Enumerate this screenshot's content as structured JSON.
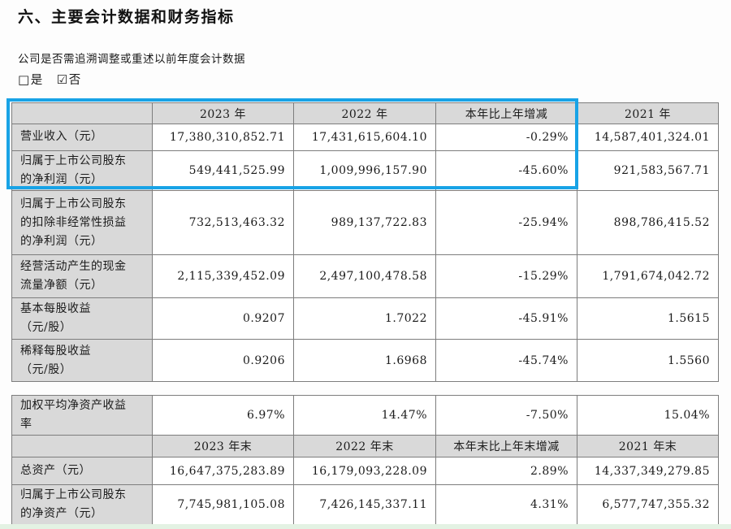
{
  "doc": {
    "title": "六、主要会计数据和财务指标",
    "restate_question": "公司是否需追溯调整或重述以前年度会计数据",
    "checkboxes": [
      {
        "glyph": "□",
        "label": "是",
        "checked": false
      },
      {
        "glyph": "☑",
        "label": "否",
        "checked": true
      }
    ]
  },
  "colors": {
    "highlight_border": "#18a3e6",
    "header_cell_bg": "#d9d9d9",
    "footer_strip": "#e3f2e3"
  },
  "tables": [
    {
      "name": "annual-indicators",
      "rows": [
        {
          "kind": "header",
          "cells": [
            "",
            "2023 年",
            "2022 年",
            "本年比上年增减",
            "2021 年"
          ]
        },
        {
          "kind": "data",
          "cells": [
            "营业收入（元）",
            "17,380,310,852.71",
            "17,431,615,604.10",
            "-0.29%",
            "14,587,401,324.01"
          ]
        },
        {
          "kind": "data",
          "cells": [
            "归属于上市公司股东\n的净利润（元）",
            "549,441,525.99",
            "1,009,996,157.90",
            "-45.60%",
            "921,583,567.71"
          ]
        },
        {
          "kind": "data",
          "cells": [
            "归属于上市公司股东\n的扣除非经常性损益\n的净利润（元）",
            "732,513,463.32",
            "989,137,722.83",
            "-25.94%",
            "898,786,415.52"
          ]
        },
        {
          "kind": "data",
          "cells": [
            "经营活动产生的现金\n流量净额（元）",
            "2,115,339,452.09",
            "2,497,100,478.58",
            "-15.29%",
            "1,791,674,042.72"
          ]
        },
        {
          "kind": "data",
          "cells": [
            "基本每股收益\n（元/股）",
            "0.9207",
            "1.7022",
            "-45.91%",
            "1.5615"
          ]
        },
        {
          "kind": "data",
          "cells": [
            "稀释每股收益\n（元/股）",
            "0.9206",
            "1.6968",
            "-45.74%",
            "1.5560"
          ]
        }
      ]
    },
    {
      "name": "period-end-indicators",
      "rows": [
        {
          "kind": "data",
          "cells": [
            "加权平均净资产收益\n率",
            "6.97%",
            "14.47%",
            "-7.50%",
            "15.04%"
          ]
        },
        {
          "kind": "header",
          "cells": [
            "",
            "2023 年末",
            "2022 年末",
            "本年末比上年末增减",
            "2021 年末"
          ]
        },
        {
          "kind": "data",
          "cells": [
            "总资产（元）",
            "16,647,375,283.89",
            "16,179,093,228.09",
            "2.89%",
            "14,337,349,279.85"
          ]
        },
        {
          "kind": "data",
          "cells": [
            "归属于上市公司股东\n的净资产（元）",
            "7,745,981,105.08",
            "7,426,145,337.11",
            "4.31%",
            "6,577,747,355.32"
          ]
        }
      ]
    }
  ]
}
